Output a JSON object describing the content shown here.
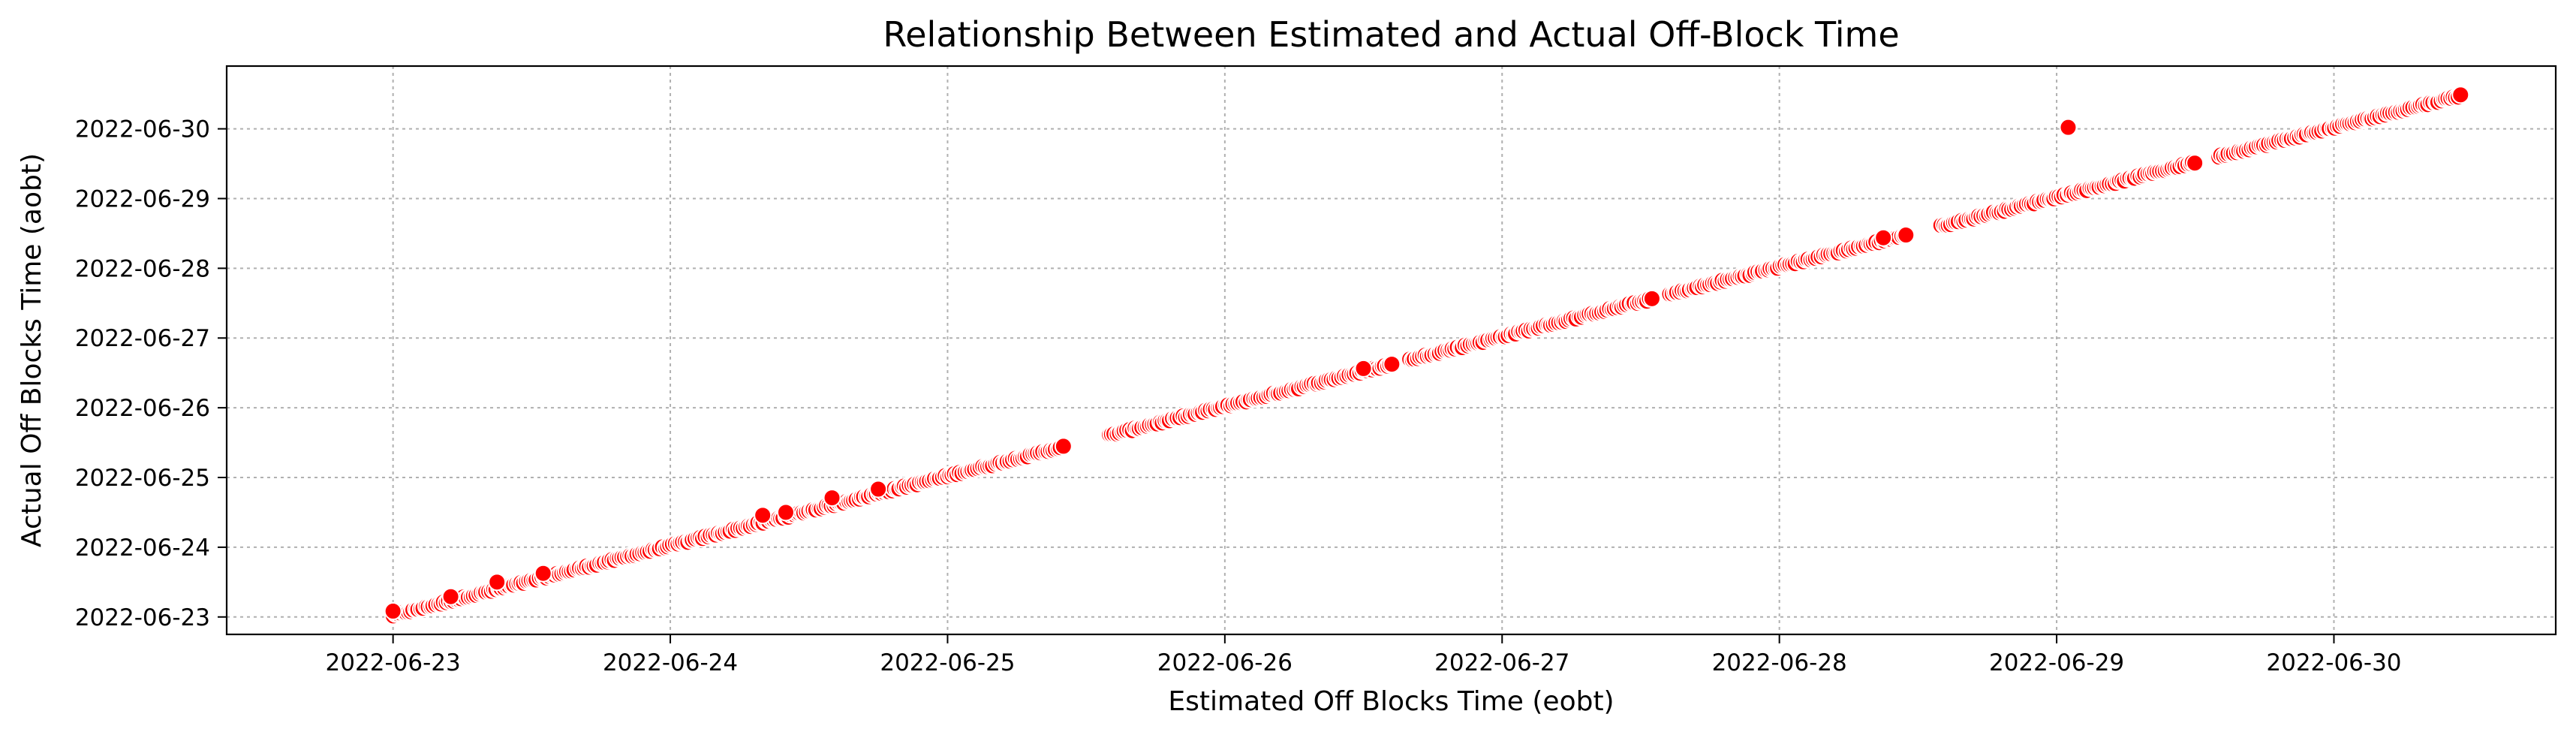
{
  "chart_data": {
    "type": "scatter",
    "title": "Relationship Between Estimated and Actual Off-Block Time",
    "xlabel": "Estimated Off Blocks Time (eobt)",
    "ylabel": "Actual Off Blocks Time (aobt)",
    "xlim": [
      "2022-06-22 09:36",
      "2022-06-30 19:12"
    ],
    "ylim": [
      "2022-06-22 18:00",
      "2022-06-30 21:36"
    ],
    "x_ticks": [
      "2022-06-23",
      "2022-06-24",
      "2022-06-25",
      "2022-06-26",
      "2022-06-27",
      "2022-06-28",
      "2022-06-29",
      "2022-06-30"
    ],
    "y_ticks": [
      "2022-06-23",
      "2022-06-24",
      "2022-06-25",
      "2022-06-26",
      "2022-06-27",
      "2022-06-28",
      "2022-06-29",
      "2022-06-30"
    ],
    "grid": true,
    "grid_style": "dotted",
    "marker_color": "#ff0000",
    "marker_edge_color": "#ffffff",
    "series": [
      {
        "segments": [
          {
            "x_start": "2022-06-23 00:00",
            "x_end": "2022-06-25 10:00"
          },
          {
            "x_start": "2022-06-25 14:00",
            "x_end": "2022-06-26 14:30"
          },
          {
            "x_start": "2022-06-26 16:00",
            "x_end": "2022-06-27 13:00"
          },
          {
            "x_start": "2022-06-27 14:30",
            "x_end": "2022-06-28 11:00"
          },
          {
            "x_start": "2022-06-28 14:00",
            "x_end": "2022-06-29 12:00"
          },
          {
            "x_start": "2022-06-29 14:00",
            "x_end": "2022-06-30 11:00"
          }
        ],
        "extra_points": [
          {
            "x": "2022-06-23 00:00",
            "y": "2022-06-23 02:00"
          },
          {
            "x": "2022-06-23 05:00",
            "y": "2022-06-23 07:00"
          },
          {
            "x": "2022-06-23 09:00",
            "y": "2022-06-23 12:00"
          },
          {
            "x": "2022-06-23 13:00",
            "y": "2022-06-23 15:00"
          },
          {
            "x": "2022-06-24 08:00",
            "y": "2022-06-24 11:00"
          },
          {
            "x": "2022-06-24 10:00",
            "y": "2022-06-24 12:00"
          },
          {
            "x": "2022-06-24 14:00",
            "y": "2022-06-24 17:00"
          },
          {
            "x": "2022-06-24 18:00",
            "y": "2022-06-24 20:00"
          },
          {
            "x": "2022-06-26 12:00",
            "y": "2022-06-26 13:30"
          },
          {
            "x": "2022-06-28 09:00",
            "y": "2022-06-28 10:30"
          },
          {
            "x": "2022-06-29 01:00",
            "y": "2022-06-30 00:30"
          }
        ]
      }
    ]
  }
}
